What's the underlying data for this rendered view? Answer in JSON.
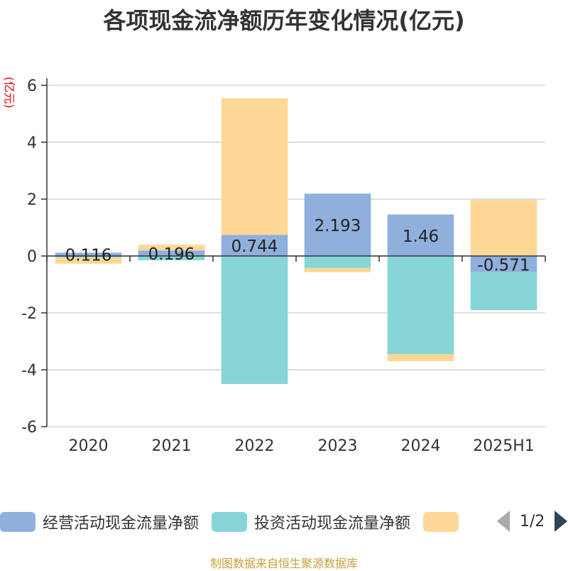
{
  "chart_data": {
    "type": "bar",
    "stacked": true,
    "title": "各项现金流净额历年变化情况(亿元)",
    "y_unit": "(亿元)",
    "categories": [
      "2020",
      "2021",
      "2022",
      "2023",
      "2024",
      "2025H1"
    ],
    "ylim": [
      -6,
      6
    ],
    "y_ticks": [
      6,
      4,
      2,
      0,
      -2,
      -4,
      -6
    ],
    "grid": true,
    "legend_position": "bottom",
    "series": [
      {
        "name": "经营活动现金流量净额",
        "color": "#8fb0dc",
        "values": [
          0.116,
          0.196,
          0.744,
          2.193,
          1.46,
          -0.571
        ],
        "labels": [
          "0.116",
          "0.196",
          "0.744",
          "2.193",
          "1.46",
          "-0.571"
        ]
      },
      {
        "name": "投资活动现金流量净额",
        "color": "#87d5d7",
        "values": [
          -0.05,
          -0.15,
          -4.5,
          -0.42,
          -3.45,
          -1.33
        ]
      },
      {
        "name": "",
        "color": "#ffd897",
        "values": [
          -0.22,
          0.2,
          4.8,
          -0.15,
          -0.25,
          1.97
        ]
      }
    ]
  },
  "legend": {
    "items": [
      {
        "label": "经营活动现金流量净额",
        "color": "#8fb0dc"
      },
      {
        "label": "投资活动现金流量净额",
        "color": "#87d5d7"
      },
      {
        "label": "",
        "color": "#ffd897"
      }
    ],
    "page_indicator": "1/2"
  },
  "source_note": "制图数据来自恒生聚源数据库"
}
